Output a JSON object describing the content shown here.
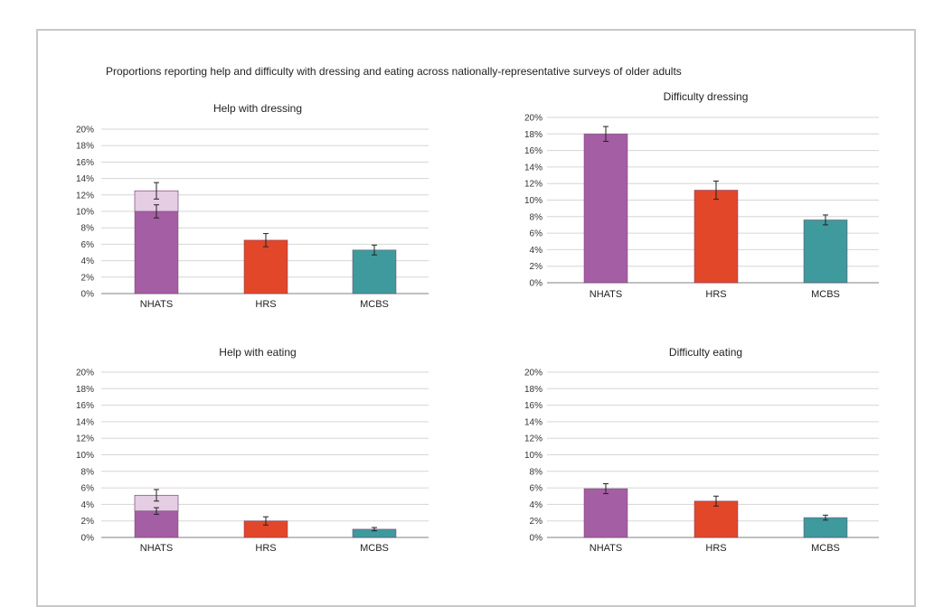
{
  "figure": {
    "title": "Proportions reporting help and difficulty with dressing and eating across nationally-representative surveys of older adults"
  },
  "colors": {
    "NHATS": "#a45ea3",
    "NHATS_light": "#e5cde4",
    "HRS": "#e2472a",
    "MCBS": "#3e9a9d",
    "grid": "#d6d6d6",
    "axis": "#9a9a9a"
  },
  "chart_data": [
    {
      "id": "help-dressing",
      "type": "bar",
      "title": "Help with dressing",
      "categories": [
        "NHATS",
        "HRS",
        "MCBS"
      ],
      "series": [
        {
          "name": "base",
          "values": [
            10.0,
            6.5,
            5.3
          ],
          "error": [
            0.8,
            0.8,
            0.6
          ]
        },
        {
          "name": "additional",
          "values": [
            2.5,
            0,
            0
          ],
          "error": [
            1.0,
            0,
            0
          ]
        }
      ],
      "ylim": [
        0,
        20
      ],
      "yticks": [
        "0%",
        "2%",
        "4%",
        "6%",
        "8%",
        "10%",
        "12%",
        "14%",
        "16%",
        "18%",
        "20%"
      ],
      "xlabel": "",
      "ylabel": ""
    },
    {
      "id": "difficulty-dressing",
      "type": "bar",
      "title": "Difficulty dressing",
      "categories": [
        "NHATS",
        "HRS",
        "MCBS"
      ],
      "series": [
        {
          "name": "base",
          "values": [
            18.0,
            11.2,
            7.6
          ],
          "error": [
            0.9,
            1.1,
            0.6
          ]
        }
      ],
      "ylim": [
        0,
        20
      ],
      "yticks": [
        "0%",
        "2%",
        "4%",
        "6%",
        "8%",
        "10%",
        "12%",
        "14%",
        "16%",
        "18%",
        "20%"
      ],
      "xlabel": "",
      "ylabel": ""
    },
    {
      "id": "help-eating",
      "type": "bar",
      "title": "Help with eating",
      "categories": [
        "NHATS",
        "HRS",
        "MCBS"
      ],
      "series": [
        {
          "name": "base",
          "values": [
            3.2,
            2.0,
            1.0
          ],
          "error": [
            0.4,
            0.5,
            0.2
          ]
        },
        {
          "name": "additional",
          "values": [
            1.9,
            0,
            0
          ],
          "error": [
            0.7,
            0,
            0
          ]
        }
      ],
      "ylim": [
        0,
        20
      ],
      "yticks": [
        "0%",
        "2%",
        "4%",
        "6%",
        "8%",
        "10%",
        "12%",
        "14%",
        "16%",
        "18%",
        "20%"
      ],
      "xlabel": "",
      "ylabel": ""
    },
    {
      "id": "difficulty-eating",
      "type": "bar",
      "title": "Difficulty eating",
      "categories": [
        "NHATS",
        "HRS",
        "MCBS"
      ],
      "series": [
        {
          "name": "base",
          "values": [
            5.9,
            4.4,
            2.4
          ],
          "error": [
            0.6,
            0.6,
            0.3
          ]
        }
      ],
      "ylim": [
        0,
        20
      ],
      "yticks": [
        "0%",
        "2%",
        "4%",
        "6%",
        "8%",
        "10%",
        "12%",
        "14%",
        "16%",
        "18%",
        "20%"
      ],
      "xlabel": "",
      "ylabel": ""
    }
  ]
}
